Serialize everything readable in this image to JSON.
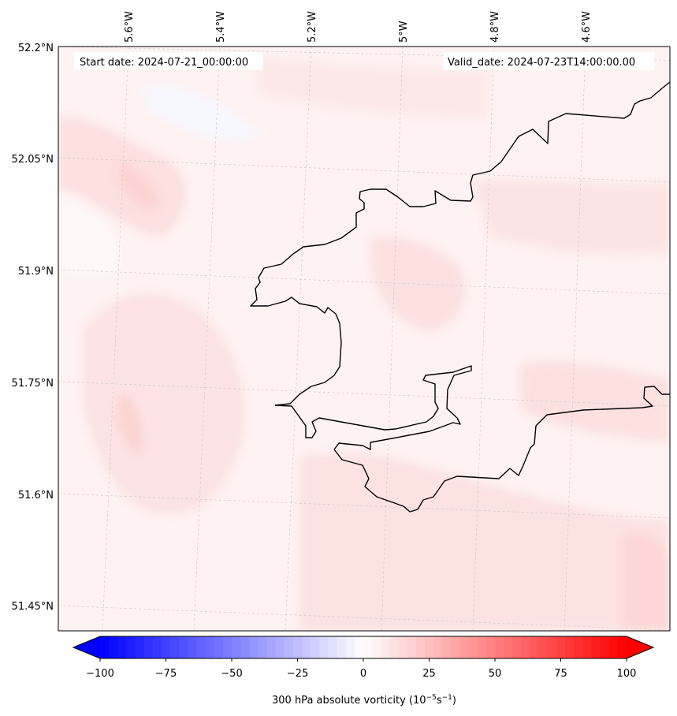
{
  "map": {
    "start_label": "Start date: 2024-07-21_00:00:00",
    "valid_label": "Valid_date: 2024-07-23T14:00:00.00",
    "lon_labels": [
      "5.6°W",
      "5.4°W",
      "5.2°W",
      "5°W",
      "4.8°W",
      "4.6°W"
    ],
    "lat_labels": [
      "52.2°N",
      "52.05°N",
      "51.9°N",
      "51.75°N",
      "51.6°N",
      "51.45°N"
    ],
    "field": "300 hPa absolute vorticity",
    "colors": {
      "negative": "#0000ff",
      "zero": "#ffffff",
      "positive": "#ff0000",
      "coastline": "#000000"
    }
  },
  "colorbar": {
    "ticks": [
      "−100",
      "−75",
      "−50",
      "−25",
      "0",
      "25",
      "50",
      "75",
      "100"
    ],
    "label_text": "300 hPa absolute vorticity (10",
    "exp1": "−5",
    "unit_mid": "s",
    "exp2": "−1",
    "label_end": ")",
    "min": -100,
    "max": 100,
    "levels": 60
  }
}
